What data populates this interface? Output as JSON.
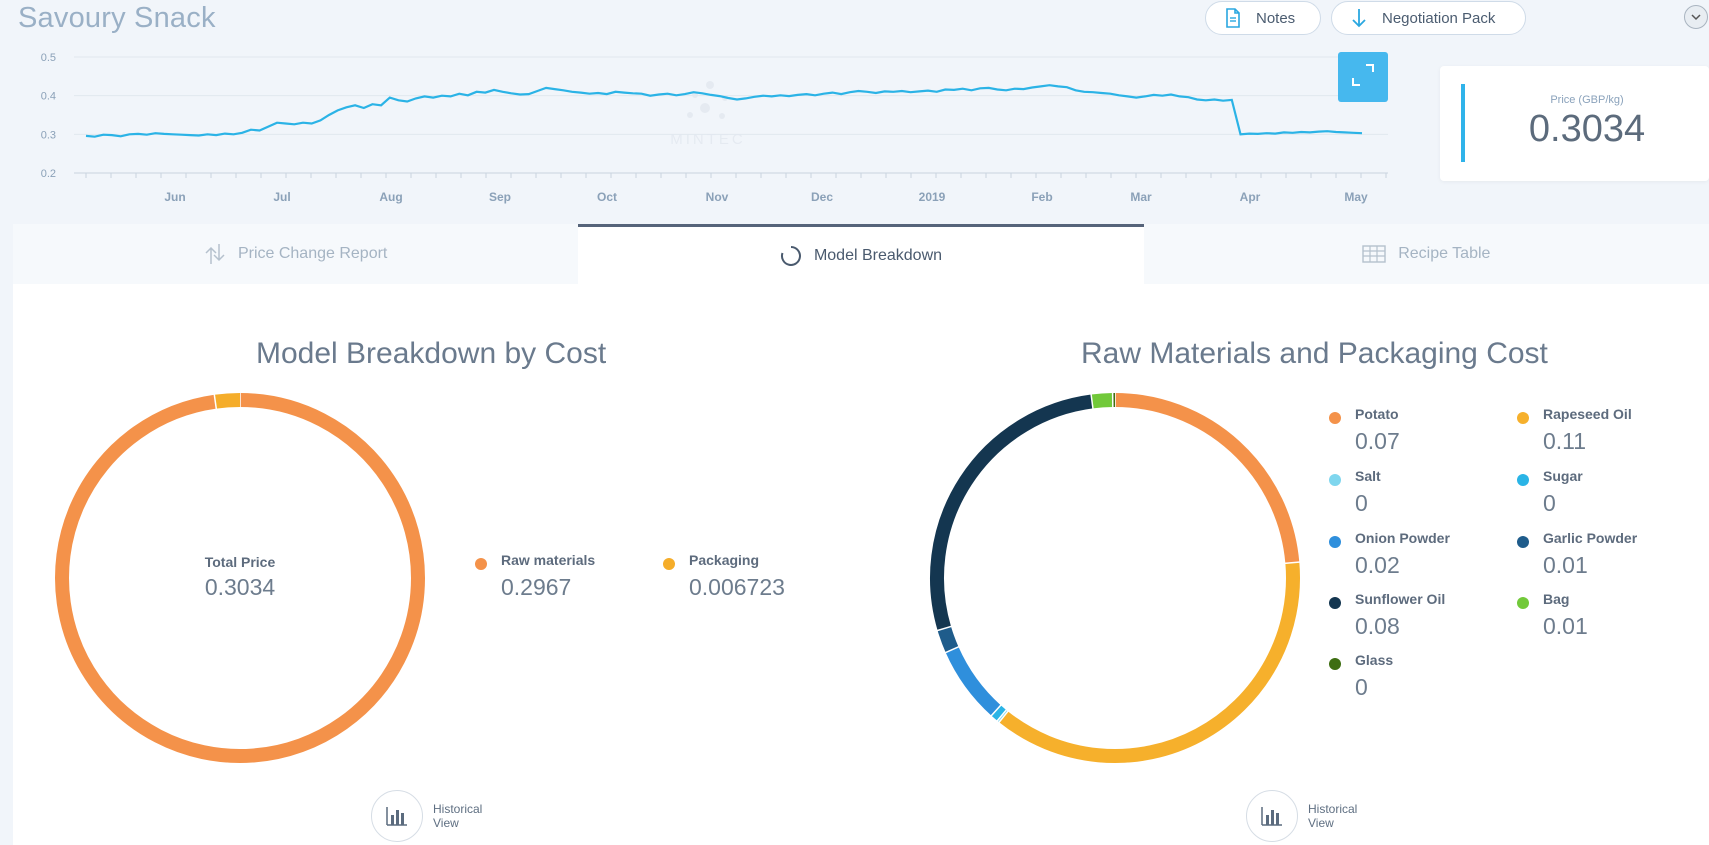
{
  "header": {
    "title": "Savoury Snack",
    "notes_label": "Notes",
    "negotiation_label": "Negotiation Pack"
  },
  "price_card": {
    "label": "Price (GBP/kg)",
    "value": "0.3034"
  },
  "chart_data": {
    "type": "line",
    "y_ticks": [
      "0.5",
      "0.4",
      "0.3",
      "0.2"
    ],
    "ylim": [
      0.2,
      0.5
    ],
    "x_ticks": [
      "Jun",
      "Jul",
      "Aug",
      "Sep",
      "Oct",
      "Nov",
      "Dec",
      "2019",
      "Feb",
      "Mar",
      "Apr",
      "May"
    ],
    "series": [
      {
        "values": [
          0.296,
          0.294,
          0.299,
          0.298,
          0.295,
          0.3,
          0.301,
          0.299,
          0.303,
          0.301,
          0.3,
          0.299,
          0.298,
          0.297,
          0.3,
          0.298,
          0.302,
          0.3,
          0.304,
          0.312,
          0.31,
          0.32,
          0.33,
          0.328,
          0.326,
          0.33,
          0.328,
          0.336,
          0.35,
          0.362,
          0.37,
          0.375,
          0.368,
          0.378,
          0.375,
          0.395,
          0.388,
          0.385,
          0.393,
          0.398,
          0.395,
          0.4,
          0.398,
          0.405,
          0.401,
          0.41,
          0.408,
          0.415,
          0.41,
          0.406,
          0.403,
          0.404,
          0.412,
          0.42,
          0.417,
          0.414,
          0.41,
          0.408,
          0.405,
          0.407,
          0.404,
          0.41,
          0.408,
          0.406,
          0.405,
          0.4,
          0.403,
          0.405,
          0.401,
          0.404,
          0.409,
          0.406,
          0.402,
          0.399,
          0.394,
          0.39,
          0.393,
          0.397,
          0.4,
          0.398,
          0.401,
          0.399,
          0.402,
          0.404,
          0.401,
          0.405,
          0.408,
          0.404,
          0.409,
          0.412,
          0.41,
          0.407,
          0.411,
          0.41,
          0.412,
          0.409,
          0.411,
          0.413,
          0.41,
          0.416,
          0.415,
          0.418,
          0.414,
          0.419,
          0.42,
          0.416,
          0.414,
          0.418,
          0.417,
          0.421,
          0.424,
          0.427,
          0.424,
          0.422,
          0.414,
          0.41,
          0.409,
          0.407,
          0.405,
          0.401,
          0.398,
          0.395,
          0.398,
          0.402,
          0.4,
          0.403,
          0.398,
          0.396,
          0.39,
          0.388,
          0.39,
          0.387,
          0.389,
          0.3,
          0.302,
          0.301,
          0.303,
          0.302,
          0.305,
          0.304,
          0.306,
          0.305,
          0.307,
          0.308,
          0.306,
          0.305,
          0.304,
          0.303
        ]
      }
    ],
    "color": "#2bb3e6"
  },
  "tabs": [
    {
      "label": "Price Change Report",
      "icon": "price-change-icon"
    },
    {
      "label": "Model Breakdown",
      "icon": "donut-icon"
    },
    {
      "label": "Recipe Table",
      "icon": "table-icon"
    }
  ],
  "model_breakdown": {
    "title": "Model Breakdown by Cost",
    "center_label": "Total Price",
    "center_value": "0.3034",
    "slices": [
      {
        "name": "Raw materials",
        "value": "0.2967",
        "amount": 0.2967,
        "color": "#f4924a"
      },
      {
        "name": "Packaging",
        "value": "0.006723",
        "amount": 0.006723,
        "color": "#f5ad2a"
      }
    ],
    "historical_label": "Historical View"
  },
  "raw_materials": {
    "title": "Raw Materials and Packaging Cost",
    "slices": [
      {
        "name": "Potato",
        "value": "0.07",
        "amount": 0.07,
        "color": "#f4924a"
      },
      {
        "name": "Rapeseed Oil",
        "value": "0.11",
        "amount": 0.11,
        "color": "#f6b02c"
      },
      {
        "name": "Salt",
        "value": "0",
        "amount": 0.0006,
        "color": "#7fd6ee"
      },
      {
        "name": "Sugar",
        "value": "0",
        "amount": 0.002,
        "color": "#2ab4e6"
      },
      {
        "name": "Onion Powder",
        "value": "0.02",
        "amount": 0.02,
        "color": "#2f8fdc"
      },
      {
        "name": "Garlic Powder",
        "value": "0.01",
        "amount": 0.006,
        "color": "#1f5c8b"
      },
      {
        "name": "Sunflower Oil",
        "value": "0.08",
        "amount": 0.0815,
        "color": "#143650"
      },
      {
        "name": "Bag",
        "value": "0.01",
        "amount": 0.0055,
        "color": "#72c93a"
      },
      {
        "name": "Glass",
        "value": "0",
        "amount": 0.0006,
        "color": "#3e6e12"
      }
    ],
    "historical_label": "Historical View"
  }
}
